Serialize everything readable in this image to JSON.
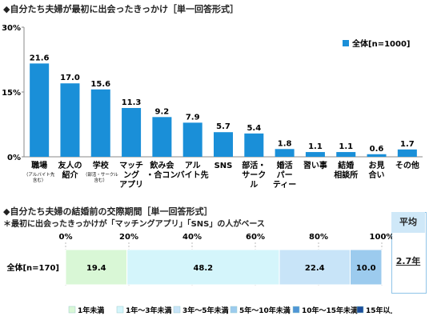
{
  "chart_data": [
    {
      "type": "bar",
      "title": "◆自分たち夫婦が最初に出会ったきっかけ［単一回答形式］",
      "ylim": [
        0,
        30
      ],
      "yticks": [
        "0%",
        "15%",
        "30%"
      ],
      "legend": "全体[n=1000]",
      "legend_placement": "top-right",
      "color": "#1a8fd8",
      "categories": [
        {
          "label": "職場",
          "note": "（アルバイト先含む）"
        },
        {
          "label": "友人の紹介",
          "note": ""
        },
        {
          "label": "学校",
          "note": "（部活・サークル含む）"
        },
        {
          "label": "マッチングアプリ",
          "note": ""
        },
        {
          "label": "飲み会・合コン",
          "note": ""
        },
        {
          "label": "アルバイト先",
          "note": ""
        },
        {
          "label": "SNS",
          "note": ""
        },
        {
          "label": "部活・サークル",
          "note": ""
        },
        {
          "label": "婚活パーティー",
          "note": ""
        },
        {
          "label": "習い事",
          "note": ""
        },
        {
          "label": "結婚相談所",
          "note": ""
        },
        {
          "label": "お見合い",
          "note": ""
        },
        {
          "label": "その他",
          "note": ""
        }
      ],
      "values": [
        21.6,
        17.0,
        15.6,
        11.3,
        9.2,
        7.9,
        5.7,
        5.4,
        1.8,
        1.1,
        1.1,
        0.6,
        1.7
      ],
      "value_labels": [
        "21.6",
        "17.0",
        "15.6",
        "11.3",
        "9.2",
        "7.9",
        "5.7",
        "5.4",
        "1.8",
        "1.1",
        "1.1",
        "0.6",
        "1.7"
      ]
    },
    {
      "type": "bar",
      "stacked": true,
      "orientation": "horizontal",
      "title": "◆自分たち夫婦の結婚前の交際期間［単一回答形式］",
      "subtitle": "＊最初に出会ったきっかけが「マッチングアプリ」「SNS」の人がベース",
      "xlim": [
        0,
        100
      ],
      "xticks": [
        "0%",
        "20%",
        "40%",
        "60%",
        "80%",
        "100%"
      ],
      "row_label": "全体[n=170]",
      "series": [
        {
          "name": "1年未満",
          "value": 19.4,
          "label": "19.4",
          "color": "#d9f7d6"
        },
        {
          "name": "1年～3年未満",
          "value": 48.2,
          "label": "48.2",
          "color": "#d4f5fb"
        },
        {
          "name": "3年～5年未満",
          "value": 22.4,
          "label": "22.4",
          "color": "#c8e4f8"
        },
        {
          "name": "5年～10年未満",
          "value": 10.0,
          "label": "10.0",
          "color": "#9ccbee"
        },
        {
          "name": "10年～15年未満",
          "value": 0,
          "label": "",
          "color": "#4f96d6"
        },
        {
          "name": "15年以上",
          "value": 0,
          "label": "",
          "color": "#1c4e9c"
        }
      ],
      "average": {
        "header": "平均",
        "value": "2.7年"
      }
    }
  ]
}
